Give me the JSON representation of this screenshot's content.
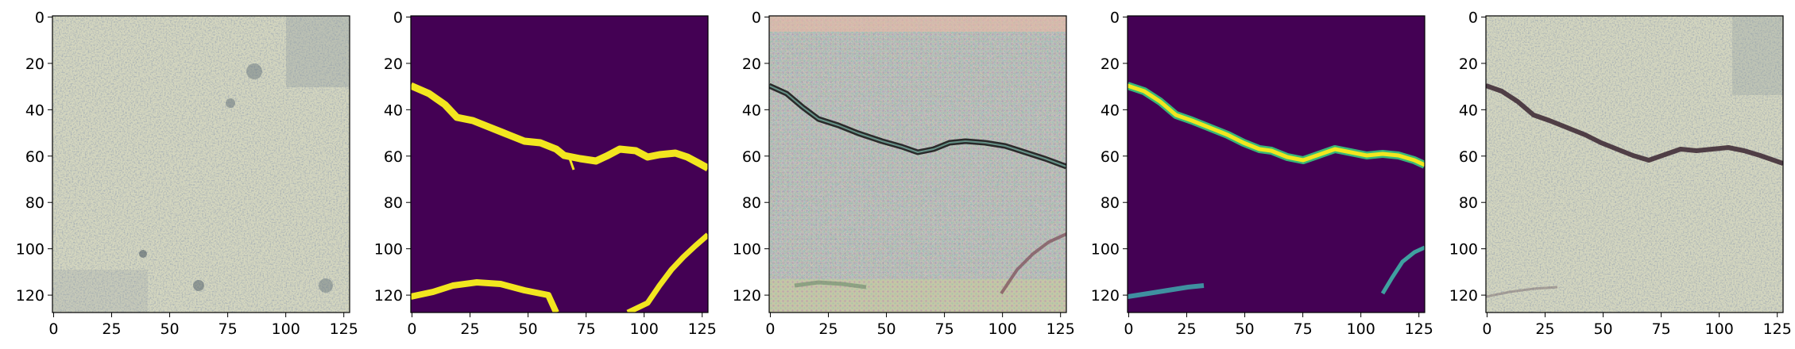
{
  "figure": {
    "panels": [
      {
        "id": "panel-1",
        "content": "concrete-surface-texture"
      },
      {
        "id": "panel-2",
        "content": "binary-crack-mask"
      },
      {
        "id": "panel-3",
        "content": "generated-crack-texture"
      },
      {
        "id": "panel-4",
        "content": "predicted-crack-mask"
      },
      {
        "id": "panel-5",
        "content": "composited-crack-overlay"
      }
    ],
    "x_ticks": [
      "0",
      "25",
      "50",
      "75",
      "100",
      "125"
    ],
    "y_ticks": [
      "0",
      "20",
      "40",
      "60",
      "80",
      "100",
      "120"
    ],
    "colors": {
      "concrete": "#d4d6bf",
      "mask_background": "#440154",
      "mask_crack": "#f2e61f",
      "crack_dark": "#3a2430"
    }
  }
}
